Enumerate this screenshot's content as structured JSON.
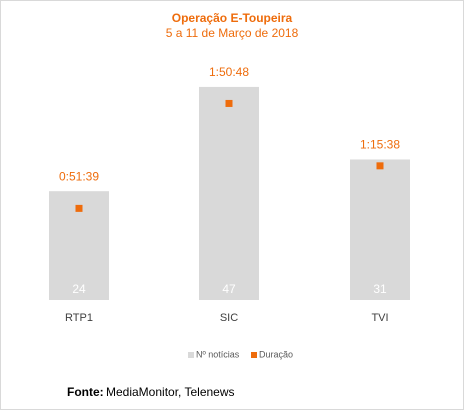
{
  "chart_data": {
    "type": "bar_marker",
    "title": "Operação E-Toupeira",
    "subtitle": "5 a 11 de Março de 2018",
    "categories": [
      "RTP1",
      "SIC",
      "TVI"
    ],
    "series": [
      {
        "name": "Nº notícias",
        "color": "#d9d9d9",
        "values": [
          24,
          47,
          31
        ]
      },
      {
        "name": "Duração",
        "color": "#ee6c0c",
        "axis": "y2",
        "values": [
          3099,
          6648,
          4538
        ],
        "value_labels": [
          "0:51:39",
          "1:50:48",
          "1:15:38"
        ]
      }
    ],
    "ylim": [
      0,
      60
    ],
    "y2lim": [
      0,
      9200
    ],
    "source_label": "Fonte:",
    "source": "MediaMonitor, Telenews"
  }
}
